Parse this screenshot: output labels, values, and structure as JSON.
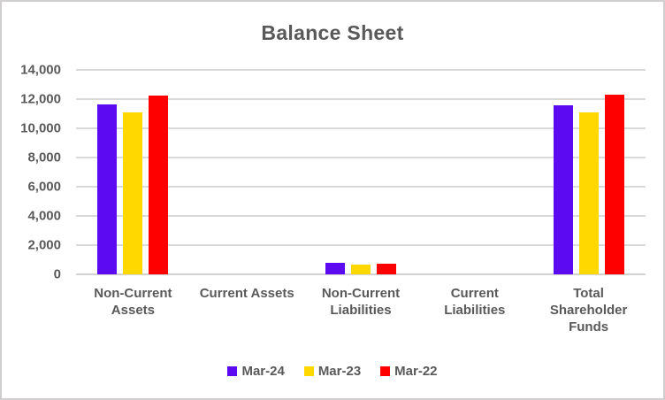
{
  "title": "Balance Sheet",
  "colors": {
    "text": "#595959",
    "grid": "#d9d9d9",
    "chart_border": "#d0cece",
    "series_purple": "#5b0af1",
    "series_yellow": "#ffd800",
    "series_red": "#ff0000"
  },
  "chart_data": {
    "type": "bar",
    "title": "Balance Sheet",
    "categories": [
      "Non-Current\nAssets",
      "Current Assets",
      "Non-Current\nLiabilities",
      "Current\nLiabilities",
      "Total\nShareholder\nFunds"
    ],
    "series": [
      {
        "name": "Mar-24",
        "color": "#5b0af1",
        "values": [
          11650,
          0,
          800,
          0,
          11550
        ]
      },
      {
        "name": "Mar-23",
        "color": "#ffd800",
        "values": [
          11100,
          0,
          660,
          0,
          11100
        ]
      },
      {
        "name": "Mar-22",
        "color": "#ff0000",
        "values": [
          12250,
          0,
          740,
          0,
          12300
        ]
      }
    ],
    "xlabel": "",
    "ylabel": "",
    "ylim": [
      0,
      14000
    ],
    "ytick_step": 2000,
    "ytick_labels": [
      "0",
      "2,000",
      "4,000",
      "6,000",
      "8,000",
      "10,000",
      "12,000",
      "14,000"
    ],
    "grid": true,
    "legend_position": "bottom"
  }
}
